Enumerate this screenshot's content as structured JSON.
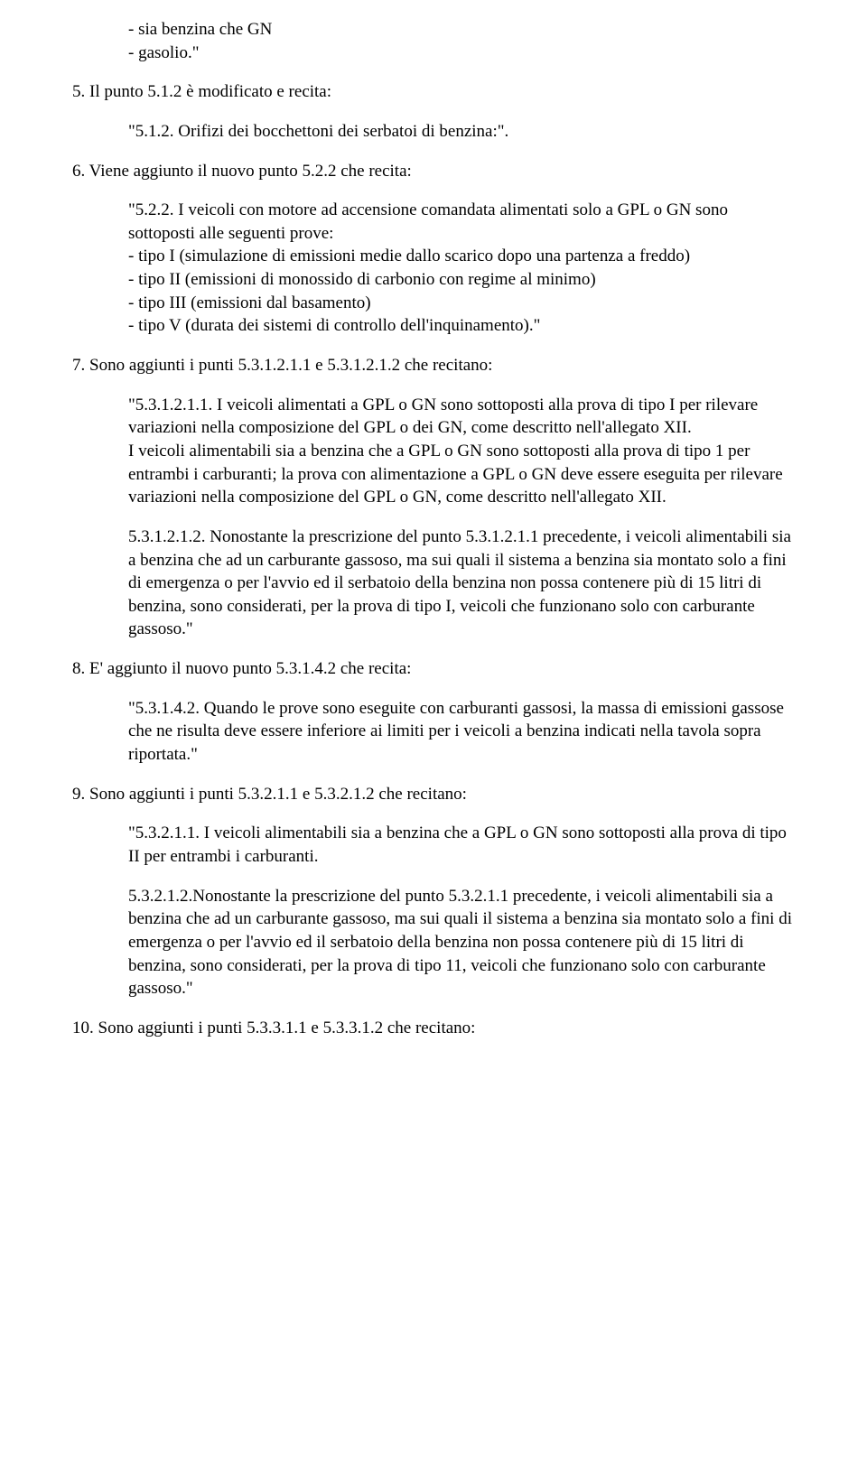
{
  "text_color": "#000000",
  "background_color": "#ffffff",
  "font_family": "Times New Roman",
  "font_size_pt": 14,
  "blocks": {
    "b1": {
      "lines": [
        "- sia benzina che GN",
        "- gasolio.\""
      ]
    },
    "b2": "5. Il punto 5.1.2 è modificato e recita:",
    "b3": "\"5.1.2. Orifizi dei bocchettoni dei serbatoi di benzina:\".",
    "b4": "6. Viene aggiunto il nuovo punto 5.2.2 che recita:",
    "b5": {
      "intro": "\"5.2.2. I veicoli con motore ad accensione comandata alimentati solo a GPL o GN sono sottoposti alle seguenti prove:",
      "lines": [
        "- tipo I (simulazione di emissioni medie dallo scarico dopo una partenza a freddo)",
        "- tipo II (emissioni di monossido di carbonio con regime al minimo)",
        "- tipo III (emissioni dal basamento)",
        "- tipo V (durata dei sistemi di controllo dell'inquinamento).\""
      ]
    },
    "b6": "7. Sono aggiunti i punti 5.3.1.2.1.1 e 5.3.1.2.1.2 che recitano:",
    "b7_p1": "\"5.3.1.2.1.1. I veicoli alimentati a GPL o GN sono sottoposti alla prova di tipo I per rilevare variazioni nella composizione del GPL o dei GN, come descritto nell'allegato XII.",
    "b7_p2": "I veicoli alimentabili sia a benzina che a GPL o GN sono sottoposti alla prova di tipo 1 per entrambi i carburanti; la prova con alimentazione a GPL o GN deve essere eseguita per rilevare variazioni nella composizione del GPL o GN, come descritto nell'allegato XII.",
    "b8": "5.3.1.2.1.2. Nonostante la prescrizione del punto 5.3.1.2.1.1 precedente, i veicoli alimentabili sia a benzina che ad un carburante gassoso, ma sui quali il sistema a benzina sia montato solo a fini di emergenza o per l'avvio ed il serbatoio della benzina non possa contenere più di 15 litri di benzina, sono considerati, per la prova di tipo I, veicoli che funzionano solo con carburante gassoso.\"",
    "b9": "8. E' aggiunto il nuovo punto 5.3.1.4.2 che recita:",
    "b10": "\"5.3.1.4.2. Quando le prove sono eseguite con carburanti gassosi, la massa di emissioni gassose che ne risulta deve essere inferiore ai limiti per i veicoli a benzina indicati nella tavola sopra riportata.\"",
    "b11": "9. Sono aggiunti i punti 5.3.2.1.1 e 5.3.2.1.2 che recitano:",
    "b12": "\"5.3.2.1.1. I veicoli alimentabili sia a benzina che a GPL o GN sono sottoposti alla prova di tipo II per entrambi i carburanti.",
    "b13": "5.3.2.1.2.Nonostante la prescrizione del punto 5.3.2.1.1 precedente, i veicoli alimentabili sia a benzina che ad un carburante gassoso, ma sui quali il sistema a benzina sia montato solo a fini di emergenza o per l'avvio ed il serbatoio della benzina non possa contenere più di 15 litri di benzina, sono considerati, per la prova di tipo 11, veicoli che funzionano solo con carburante gassoso.\"",
    "b14": "10. Sono aggiunti i punti 5.3.3.1.1 e 5.3.3.1.2 che recitano:"
  }
}
